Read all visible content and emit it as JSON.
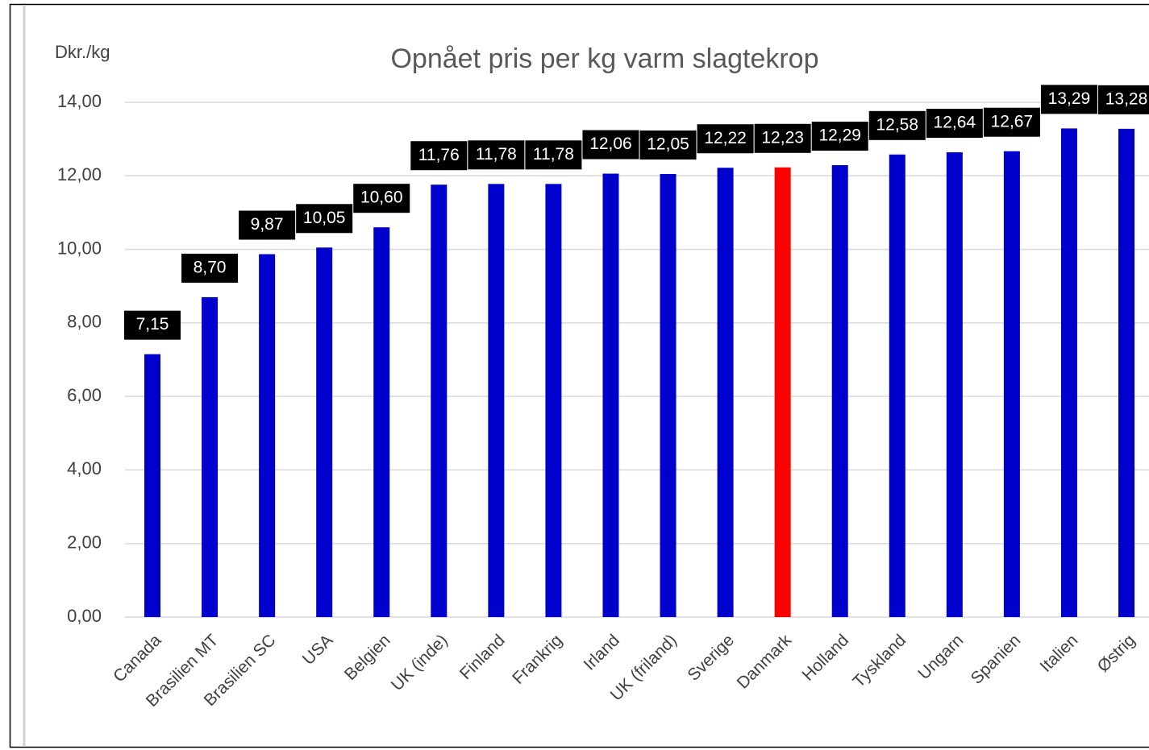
{
  "chart_data": {
    "type": "bar",
    "title": "Opnået pris per kg varm slagtekrop",
    "y_label": "Dkr./kg",
    "categories": [
      "Canada",
      "Brasilien MT",
      "Brasilien SC",
      "USA",
      "Belgien",
      "UK (inde)",
      "Finland",
      "Frankrig",
      "Irland",
      "UK (friland)",
      "Sverige",
      "Danmark",
      "Holland",
      "Tyskland",
      "Ungarn",
      "Spanien",
      "Italien",
      "Østrig"
    ],
    "values": [
      7.15,
      8.7,
      9.87,
      10.05,
      10.6,
      11.76,
      11.78,
      11.78,
      12.06,
      12.05,
      12.22,
      12.23,
      12.29,
      12.58,
      12.64,
      12.67,
      13.29,
      13.28
    ],
    "value_labels": [
      "7,15",
      "8,70",
      "9,87",
      "10,05",
      "10,60",
      "11,76",
      "11,78",
      "11,78",
      "12,06",
      "12,05",
      "12,22",
      "12,23",
      "12,29",
      "12,58",
      "12,64",
      "12,67",
      "13,29",
      "13,28"
    ],
    "colors": [
      "#0000cc",
      "#0000cc",
      "#0000cc",
      "#0000cc",
      "#0000cc",
      "#0000cc",
      "#0000cc",
      "#0000cc",
      "#0000cc",
      "#0000cc",
      "#0000cc",
      "#ff0000",
      "#0000cc",
      "#0000cc",
      "#0000cc",
      "#0000cc",
      "#0000cc",
      "#0000cc"
    ],
    "ylim": [
      0,
      14
    ],
    "yticks": [
      {
        "value": 0,
        "label": "0,00"
      },
      {
        "value": 2,
        "label": "2,00"
      },
      {
        "value": 4,
        "label": "4,00"
      },
      {
        "value": 6,
        "label": "6,00"
      },
      {
        "value": 8,
        "label": "8,00"
      },
      {
        "value": 10,
        "label": "10,00"
      },
      {
        "value": 12,
        "label": "12,00"
      },
      {
        "value": 14,
        "label": "14,00"
      }
    ],
    "grid": true
  }
}
